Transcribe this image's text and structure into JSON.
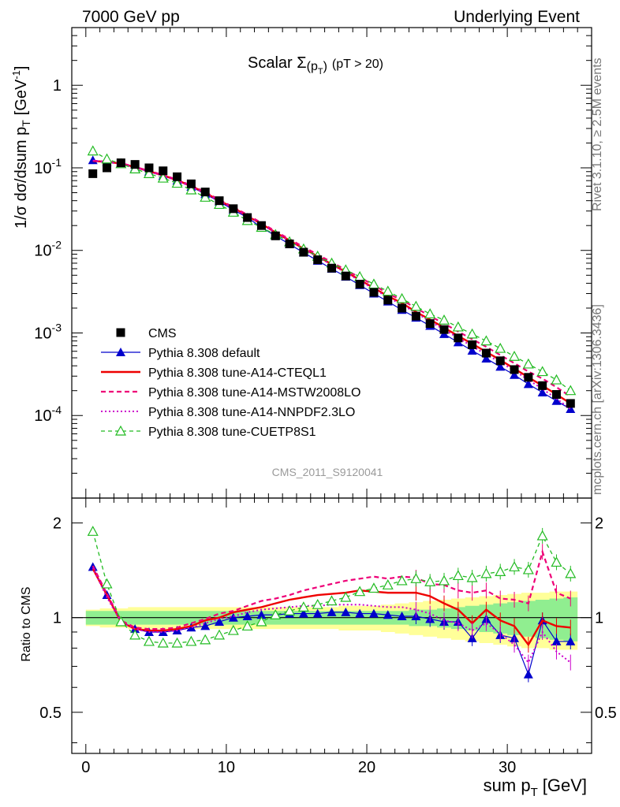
{
  "header": {
    "left": "7000 GeV pp",
    "right": "Underlying Event"
  },
  "side_labels": {
    "rivet": "Rivet 3.1.10, ≥ 2.5M events",
    "mcplots": "mcplots.cern.ch [arXiv:1306.3436]"
  },
  "chart_data": [
    {
      "type": "scatter",
      "panel": "main",
      "title_main": "Scalar Σ",
      "title_sub": "(p",
      "title_subT": "T",
      "title_subclose": ")",
      "title_cut": "(pT > 20)",
      "ylabel": "1/σ dσ/dsum p",
      "ylabel_sub": "T",
      "ylabel_unit": "[GeV",
      "ylabel_exp": "-1",
      "ylabel_close": "]",
      "yscale": "log",
      "ylim": [
        1e-05,
        5
      ],
      "xlim": [
        -1,
        36
      ],
      "watermark": "CMS_2011_S9120041",
      "ytick_labels": [
        "1",
        "10",
        "10",
        "10",
        "10"
      ],
      "ytick_exps": [
        "",
        "-1",
        "-2",
        "-3",
        "-4"
      ],
      "legend": [
        "CMS",
        "Pythia 8.308 default",
        "Pythia 8.308 tune-A14-CTEQL1",
        "Pythia 8.308 tune-A14-MSTW2008LO",
        "Pythia 8.308 tune-A14-NNPDF2.3LO",
        "Pythia 8.308 tune-CUETP8S1"
      ],
      "x": [
        0.5,
        1.5,
        2.5,
        3.5,
        4.5,
        5.5,
        6.5,
        7.5,
        8.5,
        9.5,
        10.5,
        11.5,
        12.5,
        13.5,
        14.5,
        15.5,
        16.5,
        17.5,
        18.5,
        19.5,
        20.5,
        21.5,
        22.5,
        23.5,
        24.5,
        25.5,
        26.5,
        27.5,
        28.5,
        29.5,
        30.5,
        31.5,
        32.5,
        33.5,
        34.5
      ],
      "data": [
        0.085,
        0.1,
        0.115,
        0.11,
        0.1,
        0.092,
        0.078,
        0.064,
        0.051,
        0.04,
        0.032,
        0.025,
        0.02,
        0.015,
        0.012,
        0.0095,
        0.0077,
        0.0061,
        0.0049,
        0.0039,
        0.0031,
        0.0025,
        0.002,
        0.0016,
        0.0013,
        0.0011,
        0.00087,
        0.00072,
        0.00057,
        0.00046,
        0.00036,
        0.00029,
        0.00023,
        0.00018,
        0.00014
      ],
      "series": [
        {
          "name": "Pythia 8.308 default",
          "color": "#0000cc",
          "values": [
            0.124,
            0.118,
            0.112,
            0.101,
            0.09,
            0.08,
            0.07,
            0.059,
            0.048,
            0.039,
            0.031,
            0.025,
            0.019,
            0.015,
            0.0119,
            0.0094,
            0.0075,
            0.006,
            0.0048,
            0.0038,
            0.003,
            0.0024,
            0.0019,
            0.00153,
            0.00122,
            0.00097,
            0.00077,
            0.00061,
            0.00049,
            0.00039,
            0.00031,
            0.00024,
            0.00019,
            0.00015,
            0.00012
          ]
        },
        {
          "name": "Pythia 8.308 tune-A14-CTEQL1",
          "color": "#ee0000",
          "values": [
            0.121,
            0.118,
            0.113,
            0.102,
            0.091,
            0.081,
            0.071,
            0.06,
            0.05,
            0.04,
            0.033,
            0.026,
            0.021,
            0.0165,
            0.0132,
            0.0105,
            0.0085,
            0.0068,
            0.0055,
            0.0044,
            0.0035,
            0.0028,
            0.0023,
            0.0018,
            0.00145,
            0.00116,
            0.00092,
            0.00074,
            0.00059,
            0.00047,
            0.00037,
            0.00029,
            0.00023,
            0.00018,
            0.00014
          ]
        },
        {
          "name": "Pythia 8.308 tune-A14-MSTW2008LO",
          "color": "#ee0077",
          "values": [
            0.122,
            0.119,
            0.114,
            0.103,
            0.092,
            0.082,
            0.072,
            0.061,
            0.051,
            0.041,
            0.0335,
            0.027,
            0.0215,
            0.017,
            0.0137,
            0.011,
            0.0089,
            0.0072,
            0.0058,
            0.0047,
            0.0038,
            0.003,
            0.0025,
            0.002,
            0.0016,
            0.0013,
            0.00104,
            0.00084,
            0.00068,
            0.00054,
            0.00043,
            0.00034,
            0.00028,
            0.00022,
            0.00017
          ]
        },
        {
          "name": "Pythia 8.308 tune-A14-NNPDF2.3LO",
          "color": "#cc00cc",
          "values": [
            0.123,
            0.117,
            0.112,
            0.101,
            0.09,
            0.08,
            0.07,
            0.059,
            0.049,
            0.04,
            0.032,
            0.026,
            0.021,
            0.0162,
            0.013,
            0.0104,
            0.0083,
            0.0067,
            0.0054,
            0.0043,
            0.0034,
            0.0027,
            0.0022,
            0.00175,
            0.00138,
            0.0011,
            0.00087,
            0.00069,
            0.00055,
            0.00044,
            0.00035,
            0.00027,
            0.00021,
            0.00016,
            0.00012
          ]
        },
        {
          "name": "Pythia 8.308 tune-CUETP8S1",
          "color": "#22bb22",
          "values": [
            0.16,
            0.128,
            0.112,
            0.097,
            0.085,
            0.075,
            0.065,
            0.054,
            0.044,
            0.036,
            0.029,
            0.023,
            0.019,
            0.0155,
            0.0127,
            0.0104,
            0.0085,
            0.007,
            0.0058,
            0.0048,
            0.0039,
            0.0032,
            0.0026,
            0.0021,
            0.0017,
            0.00143,
            0.00118,
            0.00097,
            0.0008,
            0.00065,
            0.00052,
            0.00042,
            0.00034,
            0.00027,
            0.0002
          ]
        }
      ]
    },
    {
      "type": "line",
      "panel": "ratio",
      "ylabel": "Ratio to CMS",
      "xlabel": "sum p",
      "xlabel_sub": "T",
      "xlabel_unit": "[GeV]",
      "yscale": "log",
      "ylim": [
        0.37,
        2.4
      ],
      "xlim": [
        -1,
        36
      ],
      "xticks": [
        "0",
        "10",
        "20",
        "30"
      ],
      "yticks": [
        "0.5",
        "1",
        "2"
      ],
      "x": [
        0.5,
        1.5,
        2.5,
        3.5,
        4.5,
        5.5,
        6.5,
        7.5,
        8.5,
        9.5,
        10.5,
        11.5,
        12.5,
        13.5,
        14.5,
        15.5,
        16.5,
        17.5,
        18.5,
        19.5,
        20.5,
        21.5,
        22.5,
        23.5,
        24.5,
        25.5,
        26.5,
        27.5,
        28.5,
        29.5,
        30.5,
        31.5,
        32.5,
        33.5,
        34.5
      ],
      "band_inner": [
        0.05,
        0.05,
        0.05,
        0.05,
        0.05,
        0.05,
        0.05,
        0.05,
        0.05,
        0.05,
        0.05,
        0.05,
        0.05,
        0.05,
        0.05,
        0.05,
        0.05,
        0.05,
        0.05,
        0.05,
        0.05,
        0.05,
        0.05,
        0.06,
        0.06,
        0.07,
        0.08,
        0.09,
        0.1,
        0.11,
        0.12,
        0.13,
        0.14,
        0.15,
        0.16
      ],
      "band_outer": [
        0.06,
        0.07,
        0.07,
        0.08,
        0.08,
        0.08,
        0.08,
        0.08,
        0.08,
        0.08,
        0.08,
        0.08,
        0.08,
        0.08,
        0.08,
        0.08,
        0.08,
        0.08,
        0.09,
        0.09,
        0.09,
        0.1,
        0.11,
        0.12,
        0.13,
        0.14,
        0.15,
        0.16,
        0.17,
        0.18,
        0.19,
        0.2,
        0.2,
        0.21,
        0.21
      ],
      "series": [
        {
          "name": "Pythia 8.308 default",
          "color": "#0000cc",
          "values": [
            1.45,
            1.18,
            0.97,
            0.92,
            0.9,
            0.9,
            0.91,
            0.93,
            0.94,
            0.97,
            1.0,
            1.01,
            1.02,
            1.02,
            1.03,
            1.03,
            1.03,
            1.04,
            1.04,
            1.03,
            1.03,
            1.02,
            1.01,
            1.01,
            0.99,
            0.97,
            0.97,
            0.86,
            0.99,
            0.88,
            0.86,
            0.66,
            0.98,
            0.84,
            0.84
          ]
        },
        {
          "name": "Pythia 8.308 tune-A14-CTEQL1",
          "color": "#ee0000",
          "values": [
            1.43,
            1.18,
            0.97,
            0.92,
            0.91,
            0.91,
            0.92,
            0.94,
            0.98,
            1.0,
            1.04,
            1.06,
            1.08,
            1.11,
            1.14,
            1.16,
            1.18,
            1.19,
            1.2,
            1.22,
            1.21,
            1.2,
            1.2,
            1.2,
            1.17,
            1.11,
            1.06,
            0.96,
            1.06,
            0.98,
            0.94,
            0.82,
            0.98,
            0.94,
            0.93
          ]
        },
        {
          "name": "Pythia 8.308 tune-A14-MSTW2008LO",
          "color": "#ee0077",
          "values": [
            1.46,
            1.19,
            0.98,
            0.93,
            0.92,
            0.92,
            0.93,
            0.96,
            0.99,
            1.03,
            1.05,
            1.09,
            1.13,
            1.15,
            1.18,
            1.22,
            1.25,
            1.28,
            1.31,
            1.33,
            1.35,
            1.33,
            1.35,
            1.34,
            1.28,
            1.27,
            1.22,
            1.2,
            1.22,
            1.15,
            1.14,
            1.11,
            1.62,
            1.2,
            1.15
          ]
        },
        {
          "name": "Pythia 8.308 tune-A14-NNPDF2.3LO",
          "color": "#cc00cc",
          "values": [
            1.44,
            1.16,
            0.97,
            0.92,
            0.9,
            0.9,
            0.91,
            0.93,
            0.96,
            0.99,
            1.01,
            1.04,
            1.06,
            1.07,
            1.08,
            1.09,
            1.09,
            1.1,
            1.1,
            1.1,
            1.09,
            1.08,
            1.08,
            1.06,
            1.03,
            0.98,
            0.96,
            0.91,
            0.96,
            0.89,
            0.82,
            0.72,
            0.9,
            0.78,
            0.72
          ]
        },
        {
          "name": "Pythia 8.308 tune-CUETP8S1",
          "color": "#22bb22",
          "values": [
            1.88,
            1.28,
            0.97,
            0.88,
            0.84,
            0.83,
            0.83,
            0.84,
            0.85,
            0.88,
            0.91,
            0.94,
            0.97,
            1.02,
            1.05,
            1.08,
            1.1,
            1.13,
            1.16,
            1.21,
            1.24,
            1.27,
            1.31,
            1.33,
            1.3,
            1.31,
            1.36,
            1.34,
            1.38,
            1.4,
            1.45,
            1.42,
            1.82,
            1.5,
            1.38
          ]
        }
      ]
    }
  ]
}
